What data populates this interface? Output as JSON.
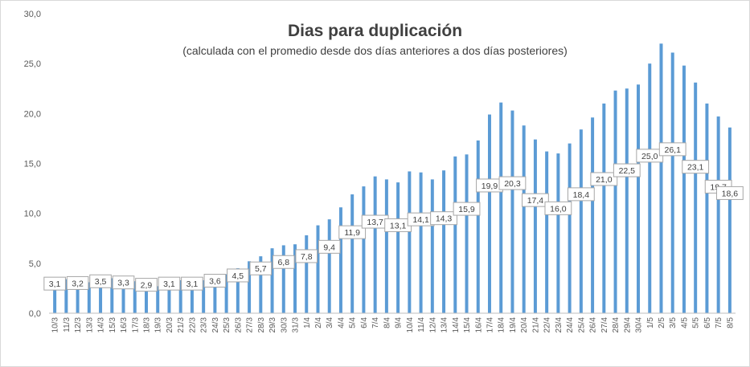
{
  "chart_data": {
    "type": "bar",
    "title": "Dias para duplicación",
    "subtitle": "(calculada con el promedio  desde dos días anteriores a dos días posteriores)",
    "xlabel": "",
    "ylabel": "",
    "ylim": [
      0,
      30
    ],
    "y_ticks": [
      "0,0",
      "5,0",
      "10,0",
      "15,0",
      "20,0",
      "25,0",
      "30,0"
    ],
    "grid": false,
    "legend": "none",
    "bar_color": "#5b9bd5",
    "categories": [
      "10/3",
      "11/3",
      "12/3",
      "13/3",
      "14/3",
      "15/3",
      "16/3",
      "17/3",
      "18/3",
      "19/3",
      "20/3",
      "21/3",
      "22/3",
      "23/3",
      "24/3",
      "25/3",
      "26/3",
      "27/3",
      "28/3",
      "29/3",
      "30/3",
      "31/3",
      "1/4",
      "2/4",
      "3/4",
      "4/4",
      "5/4",
      "6/4",
      "7/4",
      "8/4",
      "9/4",
      "10/4",
      "11/4",
      "12/4",
      "13/4",
      "14/4",
      "15/4",
      "16/4",
      "17/4",
      "18/4",
      "19/4",
      "20/4",
      "21/4",
      "22/4",
      "23/4",
      "24/4",
      "25/4",
      "26/4",
      "27/4",
      "28/4",
      "29/4",
      "30/4",
      "1/5",
      "2/5",
      "3/5",
      "4/5",
      "5/5",
      "6/5",
      "7/5",
      "8/5"
    ],
    "values": [
      3.1,
      3.4,
      3.2,
      3.1,
      3.5,
      3.5,
      3.3,
      3.2,
      2.9,
      2.7,
      3.1,
      3.3,
      3.1,
      3.3,
      3.6,
      3.9,
      4.5,
      5.2,
      5.7,
      6.5,
      6.8,
      6.9,
      7.8,
      8.8,
      9.4,
      10.6,
      11.9,
      12.7,
      13.7,
      13.4,
      13.1,
      14.2,
      14.1,
      13.4,
      14.3,
      15.7,
      15.9,
      17.3,
      19.9,
      21.1,
      20.3,
      18.8,
      17.4,
      16.2,
      16.0,
      17.0,
      18.4,
      19.6,
      21.0,
      22.3,
      22.5,
      22.9,
      25.0,
      27.0,
      26.1,
      24.8,
      23.1,
      21.0,
      19.7,
      18.6
    ],
    "data_labels": [
      {
        "category": "10/3",
        "text": "3,1"
      },
      {
        "category": "12/3",
        "text": "3,2"
      },
      {
        "category": "14/3",
        "text": "3,5"
      },
      {
        "category": "16/3",
        "text": "3,3"
      },
      {
        "category": "18/3",
        "text": "2,9"
      },
      {
        "category": "20/3",
        "text": "3,1"
      },
      {
        "category": "22/3",
        "text": "3,1"
      },
      {
        "category": "24/3",
        "text": "3,6"
      },
      {
        "category": "26/3",
        "text": "4,5"
      },
      {
        "category": "28/3",
        "text": "5,7"
      },
      {
        "category": "30/3",
        "text": "6,8"
      },
      {
        "category": "1/4",
        "text": "7,8"
      },
      {
        "category": "3/4",
        "text": "9,4"
      },
      {
        "category": "5/4",
        "text": "11,9"
      },
      {
        "category": "7/4",
        "text": "13,7"
      },
      {
        "category": "9/4",
        "text": "13,1"
      },
      {
        "category": "11/4",
        "text": "14,1"
      },
      {
        "category": "13/4",
        "text": "14,3"
      },
      {
        "category": "15/4",
        "text": "15,9"
      },
      {
        "category": "17/4",
        "text": "19,9"
      },
      {
        "category": "19/4",
        "text": "20,3"
      },
      {
        "category": "21/4",
        "text": "17,4"
      },
      {
        "category": "23/4",
        "text": "16,0"
      },
      {
        "category": "25/4",
        "text": "18,4"
      },
      {
        "category": "27/4",
        "text": "21,0"
      },
      {
        "category": "29/4",
        "text": "22,5"
      },
      {
        "category": "1/5",
        "text": "25,0"
      },
      {
        "category": "3/5",
        "text": "26,1"
      },
      {
        "category": "5/5",
        "text": "23,1"
      },
      {
        "category": "7/5",
        "text": "19,7"
      },
      {
        "category": "8/5",
        "text": "18,6"
      }
    ]
  }
}
